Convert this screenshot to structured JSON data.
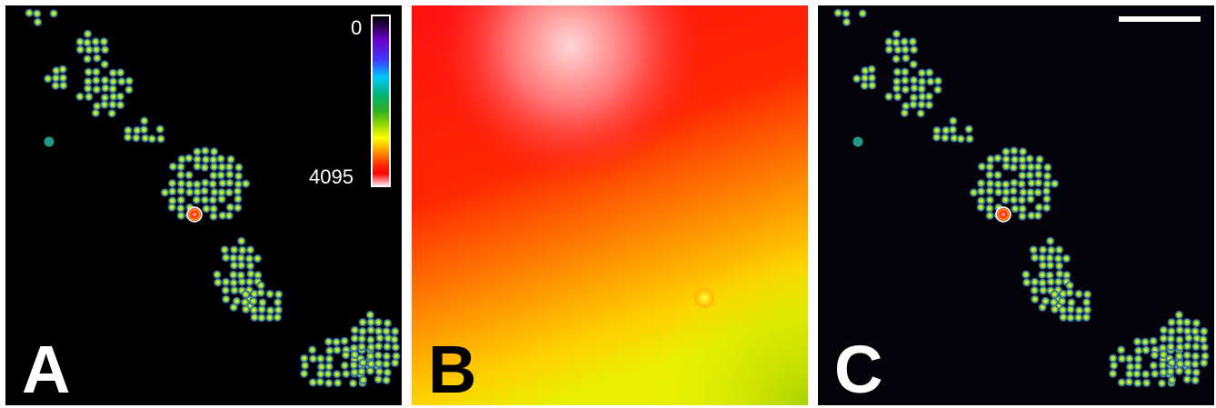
{
  "panels": [
    {
      "letter": "A",
      "description": "cluster"
    },
    {
      "letter": "B",
      "description": "background"
    },
    {
      "letter": "C",
      "description": "cluster"
    }
  ],
  "colorbar": {
    "min_label": "0",
    "max_label": "4095"
  },
  "colors": {
    "background_a": "#000000",
    "field_bright": "#ff0000",
    "field_dim": "#c8e000",
    "particle": "#9ad12a"
  }
}
